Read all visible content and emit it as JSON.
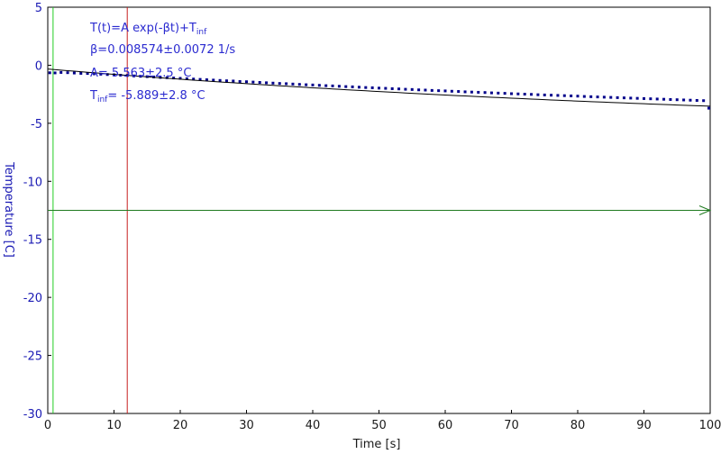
{
  "colors": {
    "axis": "#000000",
    "data_points": "#00008b",
    "fit_line": "#000000",
    "text_blue": "#2b2bd0",
    "ylabel_blue": "#1a1ab4",
    "cursor_green": "#22cc22",
    "cursor_red": "#c81e1e",
    "arrow_green": "#1f7a1f"
  },
  "fit_annotation": {
    "formula_main": "T(t)=A exp(-βt)+T",
    "formula_sub": "inf",
    "beta_line": "β=0.008574±0.0072 1/s",
    "a_line": "A= 5.563±2.5 °C",
    "tinf_prefix": "T",
    "tinf_sub": "inf",
    "tinf_rest": "= -5.889±2.8 °C"
  },
  "chart_data": {
    "type": "scatter",
    "xlabel": "Time [s]",
    "ylabel": "Temperature [C]",
    "xlim": [
      0,
      100
    ],
    "ylim": [
      -30,
      5
    ],
    "x_ticks": [
      0,
      10,
      20,
      30,
      40,
      50,
      60,
      70,
      80,
      90,
      100
    ],
    "y_ticks": [
      5,
      0,
      -5,
      -10,
      -15,
      -20,
      -25,
      -30
    ],
    "grid": false,
    "fit": {
      "model": "T(t)=A exp(-βt)+Tinf",
      "beta": 0.008574,
      "A": 5.563,
      "T_inf": -5.889,
      "x_range": [
        0,
        100
      ]
    },
    "series": [
      {
        "x": [
          0.3,
          1.1,
          2,
          3,
          4,
          5,
          6,
          7,
          8,
          9,
          10,
          11,
          12,
          13,
          14,
          15,
          16,
          17,
          18,
          19,
          20,
          21,
          22,
          23,
          24,
          25,
          26,
          27,
          28,
          29,
          30,
          31,
          32,
          33,
          34,
          35,
          36,
          37,
          38,
          39,
          40,
          41,
          42,
          43,
          44,
          45,
          46,
          47,
          48,
          49,
          50,
          51,
          52,
          53,
          54,
          55,
          56,
          57,
          58,
          59,
          60,
          61,
          62,
          63,
          64,
          65,
          66,
          67,
          68,
          69,
          70,
          71,
          72,
          73,
          74,
          75,
          76,
          77,
          78,
          79,
          80,
          81,
          82,
          83,
          84,
          85,
          86,
          87,
          88,
          89,
          90,
          91,
          92,
          93,
          94,
          95,
          96,
          97,
          98,
          99,
          99.8
        ],
        "values": [
          -0.65,
          -0.66,
          -0.62,
          -0.64,
          -0.67,
          -0.7,
          -0.71,
          -0.74,
          -0.77,
          -0.8,
          -0.82,
          -0.86,
          -0.88,
          -0.92,
          -0.95,
          -0.98,
          -1.01,
          -1.05,
          -1.07,
          -1.1,
          -1.13,
          -1.16,
          -1.19,
          -1.22,
          -1.25,
          -1.28,
          -1.31,
          -1.34,
          -1.36,
          -1.4,
          -1.42,
          -1.45,
          -1.48,
          -1.51,
          -1.54,
          -1.57,
          -1.59,
          -1.62,
          -1.65,
          -1.68,
          -1.7,
          -1.73,
          -1.76,
          -1.78,
          -1.81,
          -1.84,
          -1.86,
          -1.89,
          -1.92,
          -1.94,
          -1.97,
          -1.99,
          -2.02,
          -2.04,
          -2.07,
          -2.09,
          -2.12,
          -2.14,
          -2.17,
          -2.19,
          -2.21,
          -2.24,
          -2.26,
          -2.29,
          -2.31,
          -2.33,
          -2.35,
          -2.38,
          -2.4,
          -2.42,
          -2.45,
          -2.47,
          -2.49,
          -2.51,
          -2.54,
          -2.56,
          -2.58,
          -2.6,
          -2.62,
          -2.64,
          -2.66,
          -2.69,
          -2.71,
          -2.73,
          -2.75,
          -2.77,
          -2.79,
          -2.81,
          -2.83,
          -2.85,
          -2.87,
          -2.89,
          -2.91,
          -2.93,
          -2.95,
          -2.97,
          -2.99,
          -3.01,
          -3.03,
          -3.05,
          -3.7
        ]
      }
    ],
    "cursors": {
      "green_vertical_x": 0.8,
      "red_vertical_x": 12.0,
      "green_horizontal_y": -12.5
    }
  }
}
